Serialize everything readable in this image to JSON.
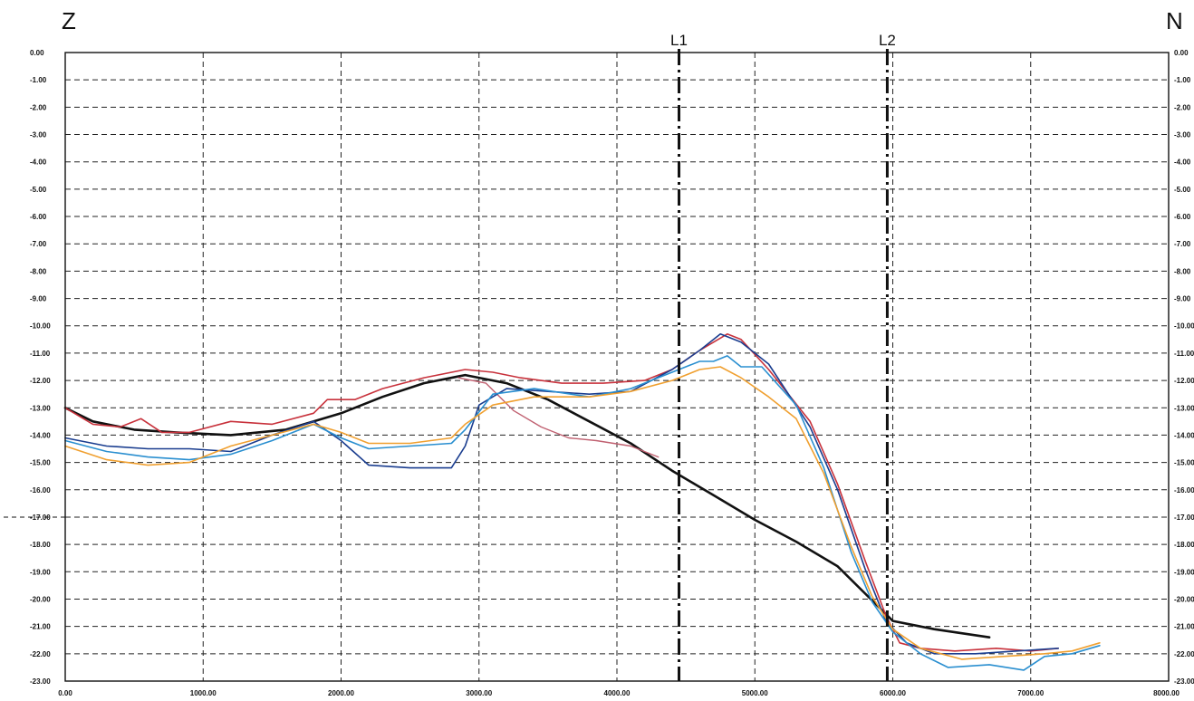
{
  "chart_data": {
    "type": "line",
    "corner_left": "Z",
    "corner_right": "N",
    "xlim": [
      0,
      8000
    ],
    "ylim": [
      -23,
      0
    ],
    "x_ticks": [
      {
        "value": 0,
        "label": "0.00"
      },
      {
        "value": 1000,
        "label": "1000.00"
      },
      {
        "value": 2000,
        "label": "2000.00"
      },
      {
        "value": 3000,
        "label": "3000.00"
      },
      {
        "value": 4000,
        "label": "4000.00"
      },
      {
        "value": 5000,
        "label": "5000.00"
      },
      {
        "value": 6000,
        "label": "6000.00"
      },
      {
        "value": 7000,
        "label": "7000.00"
      },
      {
        "value": 8000,
        "label": "8000.00"
      }
    ],
    "y_ticks": [
      {
        "value": 0,
        "label": "0.00"
      },
      {
        "value": -1,
        "label": "-1.00"
      },
      {
        "value": -2,
        "label": "-2.00"
      },
      {
        "value": -3,
        "label": "-3.00"
      },
      {
        "value": -4,
        "label": "-4.00"
      },
      {
        "value": -5,
        "label": "-5.00"
      },
      {
        "value": -6,
        "label": "-6.00"
      },
      {
        "value": -7,
        "label": "-7.00"
      },
      {
        "value": -8,
        "label": "-8.00"
      },
      {
        "value": -9,
        "label": "-9.00"
      },
      {
        "value": -10,
        "label": "-10.00"
      },
      {
        "value": -11,
        "label": "-11.00"
      },
      {
        "value": -12,
        "label": "-12.00"
      },
      {
        "value": -13,
        "label": "-13.00"
      },
      {
        "value": -14,
        "label": "-14.00"
      },
      {
        "value": -15,
        "label": "-15.00"
      },
      {
        "value": -16,
        "label": "-16.00"
      },
      {
        "value": -17,
        "label": "-17.00"
      },
      {
        "value": -18,
        "label": "-18.00"
      },
      {
        "value": -19,
        "label": "-19.00"
      },
      {
        "value": -20,
        "label": "-20.00"
      },
      {
        "value": -21,
        "label": "-21.00"
      },
      {
        "value": -22,
        "label": "-22.00"
      },
      {
        "value": -23,
        "label": "-23.00"
      }
    ],
    "grid": true,
    "markers": [
      {
        "label": "L1",
        "x": 4450
      },
      {
        "label": "L2",
        "x": 5960
      }
    ],
    "series": [
      {
        "color": "#111111",
        "width": 2.6,
        "points": [
          [
            0,
            -13
          ],
          [
            200,
            -13.5
          ],
          [
            500,
            -13.8
          ],
          [
            800,
            -13.9
          ],
          [
            1200,
            -14
          ],
          [
            1600,
            -13.8
          ],
          [
            2000,
            -13.2
          ],
          [
            2300,
            -12.6
          ],
          [
            2600,
            -12.1
          ],
          [
            2900,
            -11.8
          ],
          [
            3200,
            -12.1
          ],
          [
            3500,
            -12.7
          ],
          [
            3800,
            -13.5
          ],
          [
            4100,
            -14.3
          ],
          [
            4400,
            -15.3
          ],
          [
            4700,
            -16.2
          ],
          [
            5000,
            -17.1
          ],
          [
            5300,
            -17.9
          ],
          [
            5600,
            -18.8
          ],
          [
            5900,
            -20.3
          ],
          [
            6000,
            -20.8
          ],
          [
            6300,
            -21.1
          ],
          [
            6700,
            -21.4
          ]
        ]
      },
      {
        "color": "#c8323c",
        "width": 1.6,
        "points": [
          [
            0,
            -13
          ],
          [
            200,
            -13.6
          ],
          [
            400,
            -13.7
          ],
          [
            550,
            -13.4
          ],
          [
            700,
            -13.9
          ],
          [
            900,
            -13.9
          ],
          [
            1200,
            -13.5
          ],
          [
            1500,
            -13.6
          ],
          [
            1800,
            -13.2
          ],
          [
            1900,
            -12.7
          ],
          [
            2100,
            -12.7
          ],
          [
            2300,
            -12.3
          ],
          [
            2600,
            -11.9
          ],
          [
            2900,
            -11.6
          ],
          [
            3100,
            -11.7
          ],
          [
            3300,
            -11.9
          ],
          [
            3600,
            -12.1
          ],
          [
            3900,
            -12.1
          ],
          [
            4200,
            -12
          ],
          [
            4400,
            -11.6
          ],
          [
            4600,
            -10.9
          ],
          [
            4800,
            -10.3
          ],
          [
            4900,
            -10.5
          ],
          [
            5100,
            -11.6
          ],
          [
            5400,
            -13.5
          ],
          [
            5600,
            -15.8
          ],
          [
            5800,
            -18.6
          ],
          [
            5950,
            -20.6
          ],
          [
            6050,
            -21.6
          ],
          [
            6200,
            -21.8
          ],
          [
            6450,
            -21.9
          ],
          [
            6750,
            -21.8
          ],
          [
            7000,
            -21.9
          ],
          [
            7200,
            -21.8
          ]
        ]
      },
      {
        "color": "#c06070",
        "width": 1.4,
        "points": [
          [
            2850,
            -11.9
          ],
          [
            3050,
            -12.1
          ],
          [
            3250,
            -13.1
          ],
          [
            3450,
            -13.7
          ],
          [
            3650,
            -14.1
          ],
          [
            3850,
            -14.2
          ],
          [
            4100,
            -14.4
          ],
          [
            4300,
            -14.8
          ]
        ]
      },
      {
        "color": "#1a3d8f",
        "width": 1.6,
        "points": [
          [
            0,
            -14.1
          ],
          [
            300,
            -14.4
          ],
          [
            600,
            -14.5
          ],
          [
            900,
            -14.5
          ],
          [
            1200,
            -14.6
          ],
          [
            1500,
            -14
          ],
          [
            1800,
            -13.5
          ],
          [
            2000,
            -14.2
          ],
          [
            2200,
            -15.1
          ],
          [
            2500,
            -15.2
          ],
          [
            2800,
            -15.2
          ],
          [
            2900,
            -14.4
          ],
          [
            3000,
            -12.9
          ],
          [
            3200,
            -12.3
          ],
          [
            3500,
            -12.4
          ],
          [
            3800,
            -12.5
          ],
          [
            4100,
            -12.4
          ],
          [
            4400,
            -11.6
          ],
          [
            4600,
            -10.9
          ],
          [
            4750,
            -10.3
          ],
          [
            4900,
            -10.6
          ],
          [
            5100,
            -11.4
          ],
          [
            5400,
            -13.7
          ],
          [
            5600,
            -16
          ],
          [
            5800,
            -18.9
          ],
          [
            5950,
            -20.8
          ],
          [
            6100,
            -21.6
          ],
          [
            6300,
            -22
          ],
          [
            6600,
            -22
          ],
          [
            6900,
            -21.9
          ],
          [
            7200,
            -21.8
          ]
        ]
      },
      {
        "color": "#2a8fd0",
        "width": 1.6,
        "points": [
          [
            0,
            -14.2
          ],
          [
            300,
            -14.6
          ],
          [
            600,
            -14.8
          ],
          [
            900,
            -14.9
          ],
          [
            1200,
            -14.7
          ],
          [
            1500,
            -14.2
          ],
          [
            1800,
            -13.6
          ],
          [
            2000,
            -14.1
          ],
          [
            2200,
            -14.5
          ],
          [
            2500,
            -14.4
          ],
          [
            2800,
            -14.3
          ],
          [
            2900,
            -13.8
          ],
          [
            3100,
            -12.5
          ],
          [
            3400,
            -12.3
          ],
          [
            3800,
            -12.6
          ],
          [
            4100,
            -12.3
          ],
          [
            4400,
            -11.7
          ],
          [
            4600,
            -11.3
          ],
          [
            4700,
            -11.3
          ],
          [
            4800,
            -11.1
          ],
          [
            4900,
            -11.5
          ],
          [
            5050,
            -11.5
          ],
          [
            5300,
            -12.9
          ],
          [
            5500,
            -15.2
          ],
          [
            5700,
            -18.3
          ],
          [
            5850,
            -20.1
          ],
          [
            6000,
            -21.2
          ],
          [
            6200,
            -22
          ],
          [
            6400,
            -22.5
          ],
          [
            6700,
            -22.4
          ],
          [
            6950,
            -22.6
          ],
          [
            7100,
            -22.1
          ],
          [
            7300,
            -22
          ],
          [
            7500,
            -21.7
          ]
        ]
      },
      {
        "color": "#f0a030",
        "width": 1.6,
        "points": [
          [
            0,
            -14.4
          ],
          [
            300,
            -14.9
          ],
          [
            600,
            -15.1
          ],
          [
            900,
            -15
          ],
          [
            1200,
            -14.4
          ],
          [
            1500,
            -14
          ],
          [
            1800,
            -13.6
          ],
          [
            2000,
            -13.9
          ],
          [
            2200,
            -14.3
          ],
          [
            2500,
            -14.3
          ],
          [
            2800,
            -14.1
          ],
          [
            2900,
            -13.6
          ],
          [
            3100,
            -12.9
          ],
          [
            3400,
            -12.6
          ],
          [
            3800,
            -12.6
          ],
          [
            4100,
            -12.4
          ],
          [
            4400,
            -12
          ],
          [
            4600,
            -11.6
          ],
          [
            4750,
            -11.5
          ],
          [
            4900,
            -11.9
          ],
          [
            5100,
            -12.6
          ],
          [
            5300,
            -13.4
          ],
          [
            5500,
            -15.4
          ],
          [
            5700,
            -18.1
          ],
          [
            5850,
            -19.9
          ],
          [
            6000,
            -21.1
          ],
          [
            6200,
            -21.8
          ],
          [
            6500,
            -22.2
          ],
          [
            6800,
            -22.1
          ],
          [
            7100,
            -22
          ],
          [
            7300,
            -21.9
          ],
          [
            7500,
            -21.6
          ]
        ]
      }
    ]
  }
}
